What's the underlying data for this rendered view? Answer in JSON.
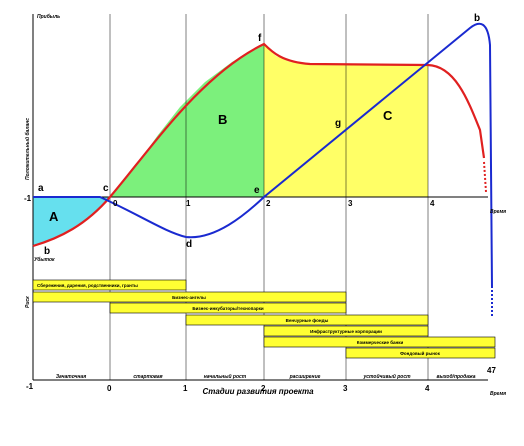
{
  "axis": {
    "y_top_label": "Прибыль",
    "y_bottom_label": "Убыток",
    "y_title": "Положительный баланс",
    "x_label_upper": "Время",
    "x_label_lower": "Время",
    "risk_label": "Риск",
    "stages_title": "Стадии развития проекта"
  },
  "points": {
    "a": "a",
    "b_low": "b",
    "c": "c",
    "d": "d",
    "e": "e",
    "f": "f",
    "g": "g",
    "b_high": "b"
  },
  "zones": {
    "A": "A",
    "B": "B",
    "C": "C"
  },
  "ticks_upper": [
    "-1",
    "0",
    "1",
    "2",
    "3",
    "4"
  ],
  "ticks_lower": [
    "-1",
    "0",
    "1",
    "2",
    "3",
    "4"
  ],
  "bars": [
    {
      "label": "Сбережения, дарения, родственники, гранты",
      "start": -1,
      "end": 1
    },
    {
      "label": "Бизнес-ангелы",
      "start": -1,
      "end": 3
    },
    {
      "label": "Бизнес-инкубаторы/технопарки",
      "start": 0,
      "end": 3
    },
    {
      "label": "Венчурные фонды",
      "start": 1,
      "end": 4
    },
    {
      "label": "Инфраструктурные корпорации",
      "start": 2,
      "end": 4
    },
    {
      "label": "Коммерческие банки",
      "start": 2,
      "end": 4.9
    },
    {
      "label": "Фондовый рынок",
      "start": 3,
      "end": 4.9
    }
  ],
  "stages": [
    "Зачаточная",
    "стартовая",
    "начальный рост",
    "расширение",
    "устойчивый рост",
    "выход/продажа"
  ],
  "page_number": "47",
  "colors": {
    "zone_a": "#66e0ee",
    "zone_b": "#7cf07c",
    "zone_c": "#ffff66",
    "red_curve": "#e02020",
    "blue_curve": "#1a2ad0",
    "bar_fill": "#ffff33"
  }
}
